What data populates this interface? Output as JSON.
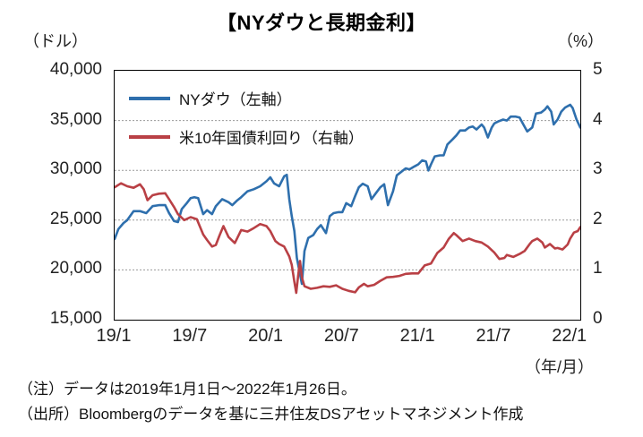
{
  "notes": {
    "note": "（注）データは2019年1月1日～2022年1月26日。",
    "source": "（出所）Bloombergのデータを基に三井住友DSアセットマネジメント作成"
  },
  "chart_data": {
    "type": "line",
    "title": "【NYダウと長期金利】",
    "x_axis_unit": "（年/月）",
    "x_range": [
      0,
      36.8
    ],
    "x_ticks": [
      {
        "pos": 0,
        "label": "19/1"
      },
      {
        "pos": 6,
        "label": "19/7"
      },
      {
        "pos": 12,
        "label": "20/1"
      },
      {
        "pos": 18,
        "label": "20/7"
      },
      {
        "pos": 24,
        "label": "21/1"
      },
      {
        "pos": 30,
        "label": "21/7"
      },
      {
        "pos": 36,
        "label": "22/1"
      }
    ],
    "left_axis": {
      "unit": "（ドル）",
      "range": [
        15000,
        40000
      ],
      "ticks": [
        {
          "value": 40000,
          "label": "40,000"
        },
        {
          "value": 35000,
          "label": "35,000"
        },
        {
          "value": 30000,
          "label": "30,000"
        },
        {
          "value": 25000,
          "label": "25,000"
        },
        {
          "value": 20000,
          "label": "20,000"
        },
        {
          "value": 15000,
          "label": "15,000"
        }
      ]
    },
    "right_axis": {
      "unit": "（%）",
      "range": [
        0,
        5
      ],
      "ticks": [
        {
          "value": 5,
          "label": "5"
        },
        {
          "value": 4,
          "label": "4"
        },
        {
          "value": 3,
          "label": "3"
        },
        {
          "value": 2,
          "label": "2"
        },
        {
          "value": 1,
          "label": "1"
        },
        {
          "value": 0,
          "label": "0"
        }
      ]
    },
    "grid_values_left": [
      20000,
      25000,
      30000,
      35000
    ],
    "grid_color": "#9a9a9a",
    "series": [
      {
        "name": "NYダウ（左軸）",
        "axis": "left",
        "color": "#2e6fad",
        "x": [
          0,
          0.3,
          0.7,
          1,
          1.5,
          2,
          2.5,
          3,
          3.5,
          4,
          4.3,
          4.7,
          5,
          5.3,
          5.7,
          6,
          6.3,
          6.6,
          7,
          7.3,
          7.7,
          8,
          8.5,
          9,
          9.3,
          9.7,
          10,
          10.5,
          11,
          11.5,
          12,
          12.3,
          12.6,
          13,
          13.4,
          13.6,
          13.8,
          14,
          14.2,
          14.4,
          14.6,
          14.8,
          15,
          15.3,
          15.7,
          16,
          16.3,
          16.7,
          17,
          17.3,
          17.7,
          18,
          18.3,
          18.7,
          19,
          19.3,
          19.6,
          20,
          20.3,
          20.7,
          21,
          21.3,
          21.6,
          22,
          22.3,
          22.7,
          23,
          23.3,
          23.7,
          24,
          24.3,
          24.6,
          24.8,
          25,
          25.3,
          25.7,
          26,
          26.3,
          26.7,
          27,
          27.3,
          27.7,
          28,
          28.3,
          28.6,
          29,
          29.2,
          29.5,
          29.8,
          30,
          30.3,
          30.7,
          31,
          31.3,
          31.7,
          32,
          32.3,
          32.6,
          33,
          33.3,
          33.7,
          34,
          34.2,
          34.5,
          34.7,
          35,
          35.3,
          35.6,
          36,
          36.2,
          36.5,
          36.8
        ],
        "y": [
          23100,
          24100,
          24700,
          25000,
          25900,
          25900,
          25700,
          26400,
          26500,
          26500,
          25700,
          24900,
          24800,
          26100,
          26700,
          27200,
          27300,
          27200,
          25600,
          26000,
          25600,
          26400,
          27100,
          26800,
          26500,
          27000,
          27300,
          27900,
          28100,
          28400,
          28900,
          29300,
          28700,
          28400,
          29400,
          29550,
          27100,
          25400,
          23900,
          21200,
          19900,
          18600,
          21900,
          23200,
          23500,
          24100,
          24500,
          23700,
          25400,
          25700,
          25800,
          25800,
          26700,
          26400,
          27400,
          28300,
          28650,
          28400,
          27100,
          27800,
          28300,
          28600,
          26500,
          27900,
          29500,
          29900,
          30200,
          30100,
          30400,
          30600,
          31000,
          30900,
          29980,
          30600,
          31400,
          31500,
          31500,
          32600,
          33100,
          33500,
          34000,
          34000,
          34300,
          34400,
          34100,
          34600,
          34300,
          33300,
          34300,
          34700,
          34900,
          35100,
          35000,
          35400,
          35400,
          35300,
          34600,
          33900,
          34300,
          35700,
          35800,
          36100,
          36430,
          35900,
          34600,
          35100,
          35900,
          36300,
          36580,
          36250,
          35100,
          34300
        ]
      },
      {
        "name": "米10年国債利回り（右軸）",
        "axis": "right",
        "color": "#b94045",
        "x": [
          0,
          0.5,
          1,
          1.5,
          2,
          2.3,
          2.6,
          3,
          3.5,
          4,
          4.3,
          4.7,
          5,
          5.5,
          6,
          6.5,
          7,
          7.3,
          7.7,
          8,
          8.3,
          8.6,
          9,
          9.5,
          10,
          10.5,
          11,
          11.5,
          12,
          12.3,
          12.7,
          13,
          13.4,
          13.8,
          14,
          14.2,
          14.35,
          14.5,
          14.65,
          14.8,
          15,
          15.5,
          16,
          16.5,
          17,
          17.5,
          18,
          18.5,
          19,
          19.3,
          19.7,
          20,
          20.5,
          21,
          21.5,
          22,
          22.5,
          23,
          23.5,
          24,
          24.5,
          25,
          25.5,
          26,
          26.4,
          26.8,
          27,
          27.5,
          28,
          28.5,
          29,
          29.5,
          30,
          30.4,
          30.8,
          31,
          31.5,
          32,
          32.4,
          32.8,
          33,
          33.4,
          33.8,
          34,
          34.4,
          34.8,
          35,
          35.4,
          35.8,
          36,
          36.3,
          36.6,
          36.8
        ],
        "y": [
          2.66,
          2.74,
          2.68,
          2.65,
          2.72,
          2.62,
          2.4,
          2.5,
          2.53,
          2.54,
          2.42,
          2.26,
          2.12,
          2.0,
          2.06,
          2.02,
          1.71,
          1.6,
          1.47,
          1.5,
          1.7,
          1.88,
          1.66,
          1.54,
          1.8,
          1.77,
          1.84,
          1.92,
          1.88,
          1.78,
          1.58,
          1.52,
          1.47,
          1.27,
          1.1,
          0.76,
          0.54,
          0.88,
          1.18,
          0.85,
          0.67,
          0.62,
          0.64,
          0.67,
          0.66,
          0.69,
          0.62,
          0.58,
          0.55,
          0.65,
          0.72,
          0.67,
          0.7,
          0.78,
          0.85,
          0.86,
          0.88,
          0.92,
          0.93,
          0.93,
          1.09,
          1.13,
          1.34,
          1.45,
          1.62,
          1.74,
          1.7,
          1.58,
          1.63,
          1.58,
          1.55,
          1.47,
          1.35,
          1.22,
          1.24,
          1.3,
          1.26,
          1.32,
          1.38,
          1.52,
          1.58,
          1.63,
          1.55,
          1.45,
          1.52,
          1.43,
          1.44,
          1.41,
          1.51,
          1.63,
          1.75,
          1.78,
          1.86
        ]
      }
    ]
  }
}
